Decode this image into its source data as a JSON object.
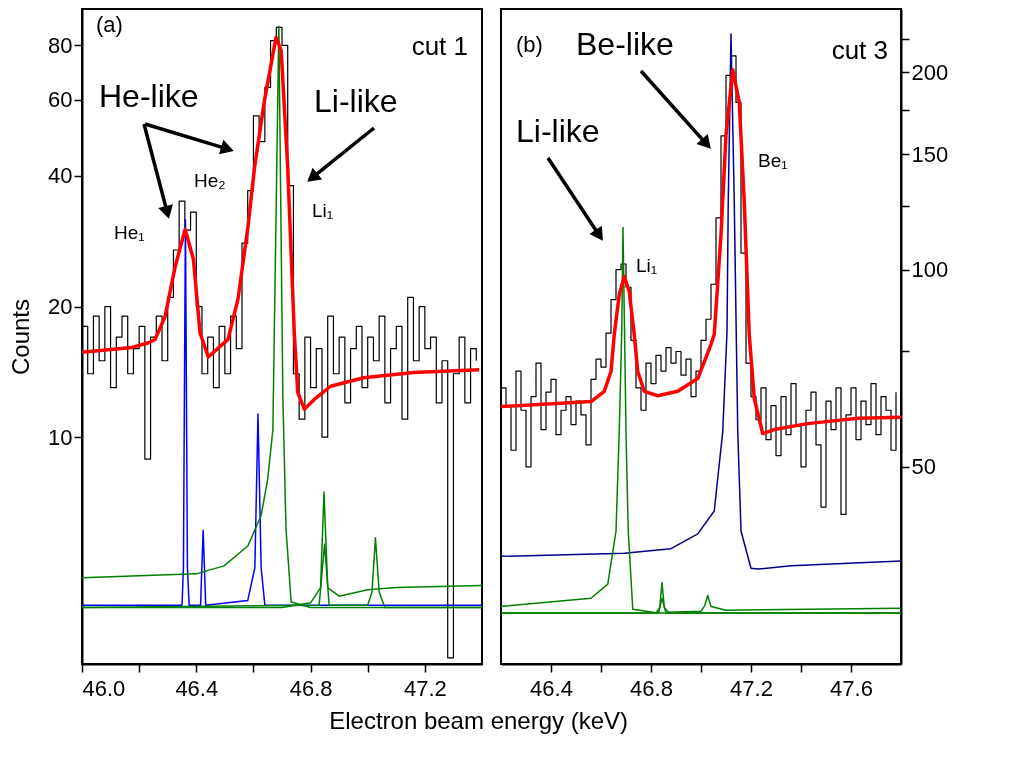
{
  "chart_data": [
    {
      "type": "line",
      "xlabel": "Electron beam energy (keV)",
      "ylabel": "Counts",
      "log": true,
      "xlim": [
        46.0,
        47.4
      ],
      "ylim": [
        3.0,
        97
      ],
      "xticks": [
        {
          "value": 46,
          "label": "46.0"
        },
        {
          "value": 46.2,
          "label": null
        },
        46.4,
        {
          "value": 46.6,
          "label": null
        },
        46.8,
        {
          "value": 47,
          "label": null
        },
        47.2
      ],
      "yticks": [
        10,
        20,
        40,
        60,
        80
      ],
      "annotations": [
        "(a)",
        "cut 1",
        "He-like",
        "Li-like",
        "He₁",
        "He₂",
        "Li₁"
      ],
      "series": [
        {
          "type": "step",
          "color": "#000000",
          "x": [
            46.0,
            46.02,
            46.04,
            46.06,
            46.08,
            46.1,
            46.12,
            46.14,
            46.16,
            46.18,
            46.2,
            46.22,
            46.24,
            46.26,
            46.28,
            46.3,
            46.32,
            46.34,
            46.36,
            46.38,
            46.4,
            46.42,
            46.44,
            46.46,
            46.48,
            46.5,
            46.52,
            46.54,
            46.56,
            46.58,
            46.6,
            46.62,
            46.64,
            46.66,
            46.68,
            46.7,
            46.72,
            46.74,
            46.76,
            46.78,
            46.8,
            46.82,
            46.84,
            46.86,
            46.88,
            46.9,
            46.92,
            46.94,
            46.96,
            46.98,
            47.0,
            47.02,
            47.04,
            47.06,
            47.08,
            47.1,
            47.12,
            47.14,
            47.16,
            47.18,
            47.2,
            47.22,
            47.24,
            47.26,
            47.28,
            47.3,
            47.32,
            47.34,
            47.36,
            47.38
          ],
          "values": [
            18,
            14,
            19,
            15,
            20,
            13,
            17,
            19,
            14,
            16,
            18,
            8.9,
            17,
            19,
            15,
            21,
            27,
            35,
            30,
            33,
            20,
            14,
            17,
            13,
            18,
            14,
            19,
            16,
            28,
            37,
            55,
            48,
            64,
            82,
            88,
            80,
            38,
            14,
            11,
            17,
            13,
            16,
            10,
            19,
            14,
            17,
            12,
            16,
            18,
            13,
            17,
            15,
            19,
            12,
            16,
            18,
            11,
            21,
            15,
            20,
            16,
            17,
            12,
            15,
            3.1,
            14,
            17,
            12,
            16,
            15
          ]
        },
        {
          "color": "#0000ff",
          "x": [
            46.0,
            46.35,
            46.355,
            46.362,
            46.369,
            46.375,
            46.415,
            46.424,
            46.433,
            46.58,
            46.605,
            46.616,
            46.627,
            46.64,
            47.4
          ],
          "values": [
            4.1,
            4.1,
            5,
            31.7,
            5,
            4.1,
            4.1,
            6.1,
            4.1,
            4.2,
            5,
            11.3,
            5,
            4.1,
            4.1
          ]
        },
        {
          "color": "#008000",
          "x": [
            46.0,
            46.4,
            46.497,
            46.581,
            46.627,
            46.65,
            46.668,
            46.689,
            46.703,
            46.714,
            46.732,
            46.8,
            47.4
          ],
          "values": [
            4.74,
            4.84,
            5.05,
            5.62,
            6.6,
            8.0,
            10.4,
            88.5,
            12.4,
            6.15,
            4.17,
            4.05,
            4.05
          ]
        },
        {
          "color": "#008000",
          "x": [
            46.0,
            46.7,
            46.8,
            46.835,
            46.847,
            46.86,
            46.9,
            47.0,
            47.1,
            47.4
          ],
          "values": [
            4.05,
            4.05,
            4.15,
            4.5,
            7.47,
            4.5,
            4.3,
            4.45,
            4.5,
            4.55
          ]
        },
        {
          "color": "#008000",
          "x": [
            46.0,
            46.83,
            46.849,
            46.865,
            47.0,
            47.015,
            47.027,
            47.04,
            47.06,
            47.4
          ],
          "values": [
            4.05,
            4.1,
            5.67,
            4.1,
            4.1,
            4.4,
            5.86,
            4.4,
            4.05,
            4.05
          ]
        },
        {
          "color": "#ff0000",
          "x": [
            46.0,
            46.175,
            46.233,
            46.256,
            46.291,
            46.326,
            46.361,
            46.39,
            46.413,
            46.442,
            46.511,
            46.546,
            46.581,
            46.604,
            46.639,
            46.679,
            46.697,
            46.72,
            46.743,
            46.755,
            46.778,
            46.812,
            46.87,
            46.986,
            47.16,
            47.39
          ],
          "values": [
            15.7,
            16.1,
            16.5,
            16.8,
            19.0,
            24.7,
            30.1,
            25.7,
            17.4,
            15.3,
            16.8,
            20.8,
            30.6,
            41.9,
            59.9,
            83.4,
            78,
            41.9,
            17.4,
            12.7,
            11.6,
            12.2,
            13.1,
            13.7,
            14.1,
            14.3
          ]
        }
      ]
    },
    {
      "type": "line",
      "log": true,
      "xlim": [
        46.2,
        47.8
      ],
      "ylim": [
        25,
        250
      ],
      "xticks": [
        46.4,
        {
          "value": 46.6,
          "label": null
        },
        46.8,
        {
          "value": 47,
          "label": null
        },
        47.2,
        {
          "value": 47.4,
          "label": null
        },
        47.6
      ],
      "yticks": [
        50,
        {
          "value": 75,
          "label": null
        },
        100,
        {
          "value": 125,
          "label": null
        },
        150,
        {
          "value": 175,
          "label": null
        },
        200,
        {
          "value": 225,
          "label": null
        }
      ],
      "annotations": [
        "(b)",
        "Be-like",
        "cut 3",
        "Li-like",
        "Li₁",
        "Be₁"
      ],
      "series": [
        {
          "type": "step",
          "color": "#000000",
          "x": [
            46.2,
            46.22,
            46.24,
            46.26,
            46.28,
            46.3,
            46.32,
            46.34,
            46.36,
            46.38,
            46.4,
            46.42,
            46.44,
            46.46,
            46.48,
            46.5,
            46.52,
            46.54,
            46.56,
            46.58,
            46.6,
            46.62,
            46.64,
            46.66,
            46.68,
            46.7,
            46.72,
            46.74,
            46.76,
            46.78,
            46.8,
            46.82,
            46.84,
            46.86,
            46.88,
            46.9,
            46.92,
            46.94,
            46.96,
            46.98,
            47.0,
            47.02,
            47.04,
            47.06,
            47.08,
            47.1,
            47.12,
            47.14,
            47.16,
            47.18,
            47.2,
            47.22,
            47.24,
            47.26,
            47.28,
            47.3,
            47.32,
            47.34,
            47.36,
            47.38,
            47.4,
            47.42,
            47.44,
            47.46,
            47.48,
            47.5,
            47.52,
            47.54,
            47.56,
            47.58,
            47.6,
            47.62,
            47.64,
            47.66,
            47.68,
            47.7,
            47.72,
            47.74,
            47.76,
            47.78
          ],
          "values": [
            66,
            62,
            53,
            70,
            61,
            50,
            64,
            72,
            57,
            65,
            68,
            56,
            61,
            64,
            58,
            63,
            60,
            54,
            68,
            73,
            71,
            80,
            90,
            100,
            102,
            94,
            78,
            66,
            61,
            72,
            67,
            74,
            70,
            76,
            72,
            75,
            69,
            73,
            64,
            70,
            78,
            84,
            95,
            120,
            160,
            198,
            212,
            180,
            106,
            72,
            64,
            59,
            66,
            55,
            62,
            52,
            64,
            56,
            67,
            58,
            50,
            61,
            65,
            54,
            43.4,
            63,
            57,
            66,
            42.3,
            60,
            66,
            55,
            63,
            58,
            67,
            56,
            64,
            61,
            53,
            65
          ]
        },
        {
          "color": "#00008b",
          "x": [
            46.2,
            46.693,
            46.88,
            46.987,
            47.053,
            47.087,
            47.104,
            47.109,
            47.12,
            47.133,
            47.147,
            47.16,
            47.2,
            47.227,
            47.36,
            47.8
          ],
          "values": [
            36.5,
            36.9,
            37.5,
            39.5,
            42.8,
            56.6,
            80.4,
            127,
            229,
            127,
            56.6,
            39.9,
            35,
            34.9,
            35.3,
            35.9
          ]
        },
        {
          "color": "#008000",
          "x": [
            46.2,
            46.56,
            46.627,
            46.66,
            46.673,
            46.683,
            46.688,
            46.7,
            46.709,
            46.727,
            46.827,
            47.8
          ],
          "values": [
            30.6,
            31.5,
            33.1,
            39.9,
            56.6,
            80.4,
            116,
            56.6,
            39.9,
            30.3,
            29.9,
            29.9
          ]
        },
        {
          "color": "#008000",
          "x": [
            46.2,
            46.82,
            46.835,
            46.844,
            46.853,
            46.87,
            47.0,
            47.015,
            47.027,
            47.04,
            47.1,
            47.8
          ],
          "values": [
            29.9,
            29.9,
            30.5,
            33.3,
            30.5,
            30.0,
            30.1,
            30.7,
            31.8,
            30.6,
            30.2,
            30.4
          ]
        },
        {
          "color": "#008000",
          "x": [
            46.2,
            46.83,
            46.844,
            46.86,
            47.8
          ],
          "values": [
            29.9,
            29.9,
            31.5,
            29.9,
            29.9
          ]
        },
        {
          "color": "#ff0000",
          "x": [
            46.2,
            46.56,
            46.613,
            46.64,
            46.653,
            46.673,
            46.693,
            46.713,
            46.733,
            46.747,
            46.773,
            46.827,
            46.907,
            46.987,
            47.04,
            47.053,
            47.08,
            47.1,
            47.127,
            47.153,
            47.173,
            47.193,
            47.213,
            47.247,
            47.293,
            47.427,
            47.627,
            47.8
          ],
          "values": [
            61.8,
            62.9,
            65.2,
            69.9,
            79.6,
            91.6,
            97.6,
            92.6,
            79.6,
            69.9,
            65.2,
            64.2,
            65.2,
            68.2,
            76.9,
            79.6,
            113,
            160.6,
            202,
            180,
            127,
            79.6,
            63.6,
            56.2,
            57.0,
            58.2,
            59.3,
            59.5
          ]
        }
      ]
    }
  ]
}
